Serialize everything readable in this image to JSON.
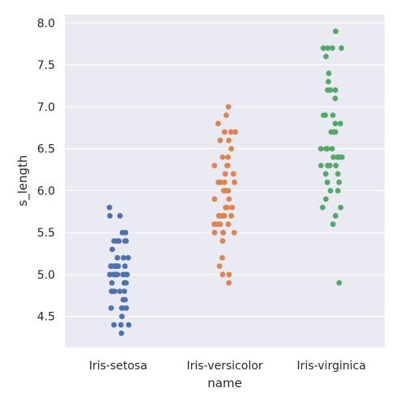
{
  "chart_data": {
    "type": "scatter",
    "style": "stripplot",
    "xlabel": "name",
    "ylabel": "s_length",
    "categories": [
      "Iris-setosa",
      "Iris-versicolor",
      "Iris-virginica"
    ],
    "ylim": [
      4.13,
      8.1
    ],
    "yticks": [
      "4.5",
      "5.0",
      "5.5",
      "6.0",
      "6.5",
      "7.0",
      "7.5",
      "8.0"
    ],
    "grid": true,
    "background": "#eaeaf2",
    "colors": [
      "#4c72b0",
      "#dd8452",
      "#55a868"
    ],
    "series": [
      {
        "values": [
          4.3,
          4.4,
          4.4,
          4.4,
          4.5,
          4.6,
          4.6,
          4.6,
          4.6,
          4.7,
          4.7,
          4.8,
          4.8,
          4.8,
          4.8,
          4.8,
          4.9,
          4.9,
          4.9,
          4.9,
          5.0,
          5.0,
          5.0,
          5.0,
          5.0,
          5.0,
          5.0,
          5.0,
          5.1,
          5.1,
          5.1,
          5.1,
          5.1,
          5.1,
          5.1,
          5.1,
          5.2,
          5.2,
          5.2,
          5.3,
          5.4,
          5.4,
          5.4,
          5.4,
          5.4,
          5.5,
          5.5,
          5.7,
          5.7,
          5.8
        ]
      },
      {
        "values": [
          4.9,
          5.0,
          5.0,
          5.1,
          5.2,
          5.4,
          5.5,
          5.5,
          5.5,
          5.5,
          5.6,
          5.6,
          5.6,
          5.6,
          5.6,
          5.7,
          5.7,
          5.7,
          5.7,
          5.7,
          5.8,
          5.8,
          5.8,
          5.9,
          5.9,
          6.0,
          6.0,
          6.0,
          6.0,
          6.1,
          6.1,
          6.1,
          6.1,
          6.2,
          6.2,
          6.3,
          6.3,
          6.3,
          6.4,
          6.4,
          6.5,
          6.6,
          6.6,
          6.7,
          6.7,
          6.7,
          6.8,
          6.9,
          7.0
        ]
      },
      {
        "values": [
          4.9,
          5.6,
          5.7,
          5.8,
          5.8,
          5.8,
          5.9,
          6.0,
          6.0,
          6.1,
          6.1,
          6.2,
          6.2,
          6.3,
          6.3,
          6.3,
          6.3,
          6.3,
          6.4,
          6.4,
          6.4,
          6.4,
          6.4,
          6.5,
          6.5,
          6.5,
          6.5,
          6.7,
          6.7,
          6.7,
          6.7,
          6.7,
          6.8,
          6.8,
          6.9,
          6.9,
          6.9,
          7.1,
          7.2,
          7.2,
          7.2,
          7.3,
          7.4,
          7.6,
          7.7,
          7.7,
          7.7,
          7.7,
          7.9
        ]
      }
    ]
  }
}
